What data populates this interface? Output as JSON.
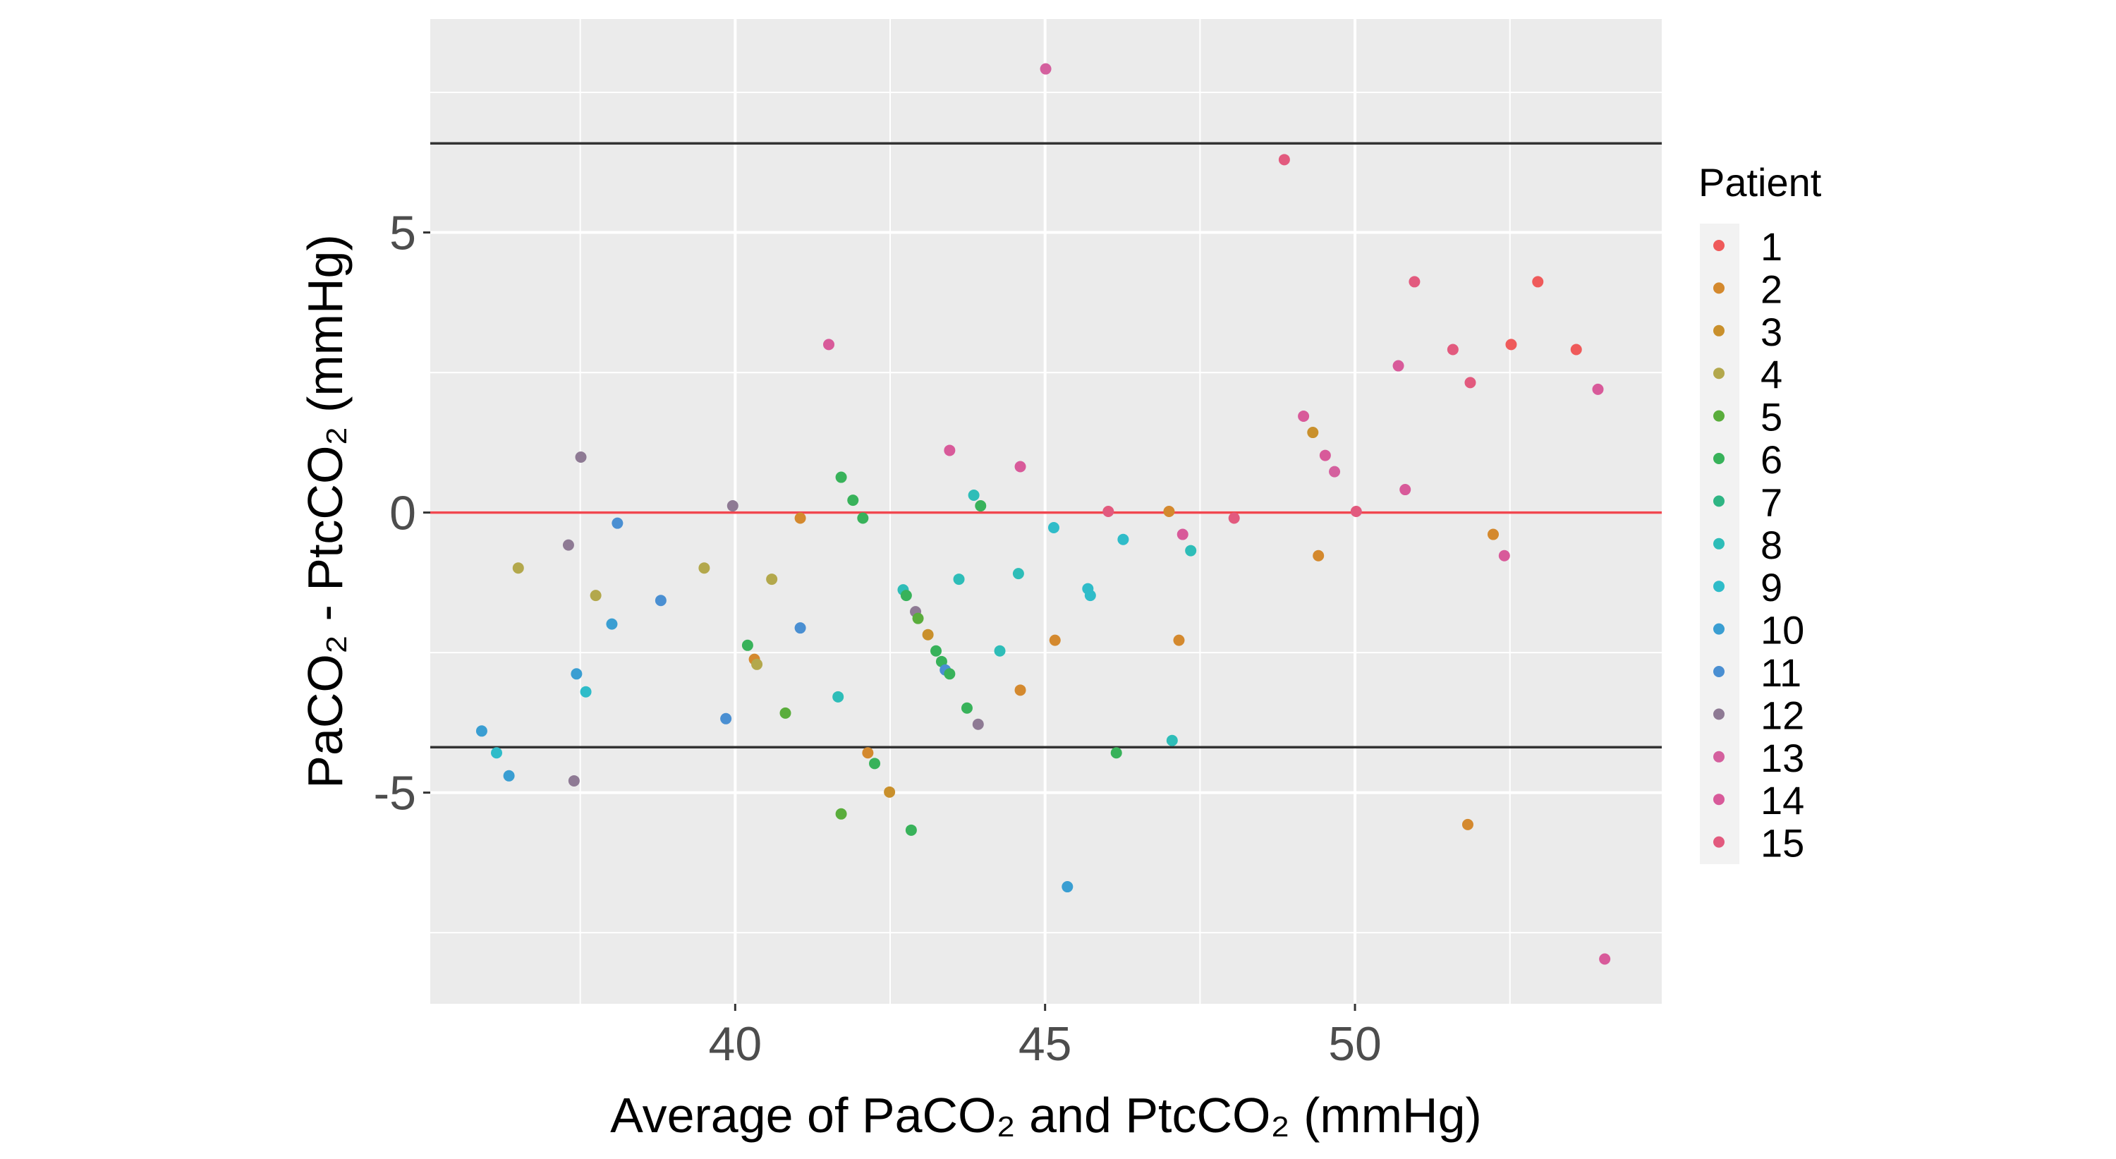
{
  "chart_data": {
    "type": "scatter",
    "title": "",
    "xlabel": "Average of PaCO₂ and PtcCO₂ (mmHg)",
    "ylabel": "PaCO₂ - PtcCO₂ (mmHg)",
    "xlim": [
      35.08,
      54.95
    ],
    "ylim": [
      -8.77,
      8.81
    ],
    "x_ticks": [
      40,
      45,
      50
    ],
    "y_ticks": [
      -5,
      0,
      5
    ],
    "x_tick_labels": [
      "40",
      "45",
      "50"
    ],
    "y_tick_labels": [
      "-5",
      "0",
      "5"
    ],
    "grid": true,
    "background": "#ebebeb",
    "reference_lines": [
      {
        "y": 6.59,
        "color": "#333333"
      },
      {
        "y": 0,
        "color": "#f0474f"
      },
      {
        "y": -4.19,
        "color": "#333333"
      }
    ],
    "legend": {
      "title": "Patient",
      "placement": "right",
      "entries": [
        {
          "label": "1",
          "color": "#ef5a5a"
        },
        {
          "label": "2",
          "color": "#d4892e"
        },
        {
          "label": "3",
          "color": "#c9902c"
        },
        {
          "label": "4",
          "color": "#b3a84c"
        },
        {
          "label": "5",
          "color": "#5aad3c"
        },
        {
          "label": "6",
          "color": "#38b25a"
        },
        {
          "label": "7",
          "color": "#2fb584"
        },
        {
          "label": "8",
          "color": "#2ebdb8"
        },
        {
          "label": "9",
          "color": "#2fbcc9"
        },
        {
          "label": "10",
          "color": "#3a9ed2"
        },
        {
          "label": "11",
          "color": "#4a8fd2"
        },
        {
          "label": "12",
          "color": "#8e7a94"
        },
        {
          "label": "13",
          "color": "#d4609e"
        },
        {
          "label": "14",
          "color": "#d85a9a"
        },
        {
          "label": "15",
          "color": "#e25a7e"
        }
      ]
    },
    "points": [
      {
        "x": 35.91,
        "y": -3.9,
        "patient": "10"
      },
      {
        "x": 36.15,
        "y": -4.29,
        "patient": "9"
      },
      {
        "x": 36.35,
        "y": -4.7,
        "patient": "10"
      },
      {
        "x": 36.5,
        "y": -0.99,
        "patient": "4"
      },
      {
        "x": 37.31,
        "y": -0.58,
        "patient": "12"
      },
      {
        "x": 37.51,
        "y": 0.99,
        "patient": "12"
      },
      {
        "x": 37.4,
        "y": -4.79,
        "patient": "12"
      },
      {
        "x": 37.44,
        "y": -2.88,
        "patient": "10"
      },
      {
        "x": 37.59,
        "y": -3.2,
        "patient": "9"
      },
      {
        "x": 37.75,
        "y": -1.48,
        "patient": "4"
      },
      {
        "x": 38.01,
        "y": -1.99,
        "patient": "10"
      },
      {
        "x": 38.1,
        "y": -0.19,
        "patient": "11"
      },
      {
        "x": 38.8,
        "y": -1.57,
        "patient": "11"
      },
      {
        "x": 39.5,
        "y": -0.99,
        "patient": "4"
      },
      {
        "x": 39.85,
        "y": -3.68,
        "patient": "11"
      },
      {
        "x": 39.96,
        "y": 0.12,
        "patient": "12"
      },
      {
        "x": 40.2,
        "y": -2.37,
        "patient": "6"
      },
      {
        "x": 40.31,
        "y": -2.62,
        "patient": "2"
      },
      {
        "x": 40.35,
        "y": -2.71,
        "patient": "4"
      },
      {
        "x": 40.59,
        "y": -1.19,
        "patient": "4"
      },
      {
        "x": 40.81,
        "y": -3.58,
        "patient": "5"
      },
      {
        "x": 41.05,
        "y": -2.06,
        "patient": "11"
      },
      {
        "x": 41.05,
        "y": -0.1,
        "patient": "2"
      },
      {
        "x": 41.51,
        "y": 3.0,
        "patient": "14"
      },
      {
        "x": 41.66,
        "y": -3.29,
        "patient": "8"
      },
      {
        "x": 41.71,
        "y": 0.63,
        "patient": "6"
      },
      {
        "x": 41.71,
        "y": -5.38,
        "patient": "5"
      },
      {
        "x": 41.9,
        "y": 0.22,
        "patient": "6"
      },
      {
        "x": 42.06,
        "y": -0.1,
        "patient": "6"
      },
      {
        "x": 42.14,
        "y": -4.29,
        "patient": "2"
      },
      {
        "x": 42.25,
        "y": -4.48,
        "patient": "6"
      },
      {
        "x": 42.49,
        "y": -4.99,
        "patient": "3"
      },
      {
        "x": 42.71,
        "y": -1.38,
        "patient": "8"
      },
      {
        "x": 42.76,
        "y": -1.48,
        "patient": "6"
      },
      {
        "x": 42.84,
        "y": -5.67,
        "patient": "6"
      },
      {
        "x": 42.91,
        "y": -1.77,
        "patient": "12"
      },
      {
        "x": 42.95,
        "y": -1.89,
        "patient": "5"
      },
      {
        "x": 43.11,
        "y": -2.18,
        "patient": "3"
      },
      {
        "x": 43.24,
        "y": -2.47,
        "patient": "6"
      },
      {
        "x": 43.33,
        "y": -2.66,
        "patient": "6"
      },
      {
        "x": 43.39,
        "y": -2.81,
        "patient": "11"
      },
      {
        "x": 43.46,
        "y": -2.88,
        "patient": "6"
      },
      {
        "x": 43.46,
        "y": 1.11,
        "patient": "14"
      },
      {
        "x": 43.61,
        "y": -1.19,
        "patient": "8"
      },
      {
        "x": 43.74,
        "y": -3.49,
        "patient": "6"
      },
      {
        "x": 43.85,
        "y": 0.31,
        "patient": "8"
      },
      {
        "x": 43.92,
        "y": -3.78,
        "patient": "12"
      },
      {
        "x": 43.96,
        "y": 0.12,
        "patient": "6"
      },
      {
        "x": 44.27,
        "y": -2.47,
        "patient": "8"
      },
      {
        "x": 44.57,
        "y": -1.09,
        "patient": "8"
      },
      {
        "x": 44.6,
        "y": 0.82,
        "patient": "14"
      },
      {
        "x": 44.6,
        "y": -3.17,
        "patient": "2"
      },
      {
        "x": 45.01,
        "y": 7.92,
        "patient": "13"
      },
      {
        "x": 45.14,
        "y": -0.27,
        "patient": "9"
      },
      {
        "x": 45.16,
        "y": -2.28,
        "patient": "2"
      },
      {
        "x": 45.36,
        "y": -6.68,
        "patient": "10"
      },
      {
        "x": 45.69,
        "y": -1.36,
        "patient": "9"
      },
      {
        "x": 45.73,
        "y": -1.48,
        "patient": "9"
      },
      {
        "x": 46.02,
        "y": 0.02,
        "patient": "15"
      },
      {
        "x": 46.15,
        "y": -4.29,
        "patient": "6"
      },
      {
        "x": 46.26,
        "y": -0.48,
        "patient": "9"
      },
      {
        "x": 47.0,
        "y": 0.02,
        "patient": "2"
      },
      {
        "x": 47.05,
        "y": -4.07,
        "patient": "8"
      },
      {
        "x": 47.16,
        "y": -2.28,
        "patient": "2"
      },
      {
        "x": 47.22,
        "y": -0.39,
        "patient": "14"
      },
      {
        "x": 47.35,
        "y": -0.68,
        "patient": "8"
      },
      {
        "x": 48.05,
        "y": -0.1,
        "patient": "15"
      },
      {
        "x": 48.86,
        "y": 6.3,
        "patient": "15"
      },
      {
        "x": 49.17,
        "y": 1.72,
        "patient": "14"
      },
      {
        "x": 49.32,
        "y": 1.43,
        "patient": "3"
      },
      {
        "x": 49.41,
        "y": -0.77,
        "patient": "2"
      },
      {
        "x": 49.52,
        "y": 1.02,
        "patient": "14"
      },
      {
        "x": 49.67,
        "y": 0.73,
        "patient": "13"
      },
      {
        "x": 50.02,
        "y": 0.02,
        "patient": "15"
      },
      {
        "x": 50.7,
        "y": 2.62,
        "patient": "14"
      },
      {
        "x": 50.81,
        "y": 0.41,
        "patient": "14"
      },
      {
        "x": 50.96,
        "y": 4.12,
        "patient": "15"
      },
      {
        "x": 51.58,
        "y": 2.91,
        "patient": "15"
      },
      {
        "x": 51.82,
        "y": -5.57,
        "patient": "2"
      },
      {
        "x": 51.86,
        "y": 2.32,
        "patient": "15"
      },
      {
        "x": 52.23,
        "y": -0.39,
        "patient": "2"
      },
      {
        "x": 52.41,
        "y": -0.77,
        "patient": "14"
      },
      {
        "x": 52.52,
        "y": 3.0,
        "patient": "1"
      },
      {
        "x": 52.95,
        "y": 4.12,
        "patient": "1"
      },
      {
        "x": 53.57,
        "y": 2.91,
        "patient": "1"
      },
      {
        "x": 53.92,
        "y": 2.2,
        "patient": "14"
      },
      {
        "x": 54.03,
        "y": -7.97,
        "patient": "14"
      }
    ]
  }
}
